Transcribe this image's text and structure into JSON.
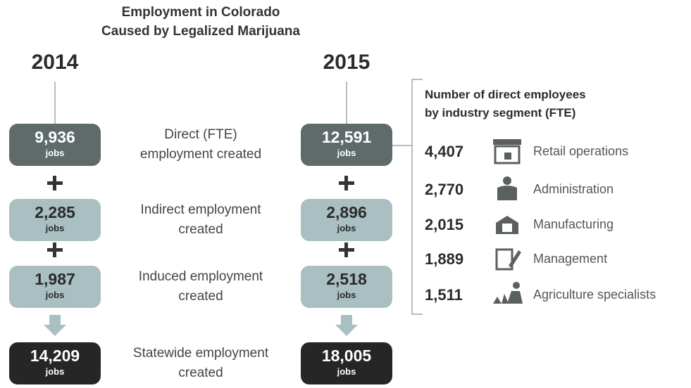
{
  "header": {
    "title_lines": [
      "Employment in Colorado",
      "Caused by Legalized Marijuana"
    ]
  },
  "years": [
    "2014",
    "2015"
  ],
  "unit": "jobs",
  "rows": [
    {
      "label_lines": [
        "Direct (FTE)",
        "employment created"
      ],
      "values": [
        "9,936",
        "12,591"
      ]
    },
    {
      "label_lines": [
        "Indirect employment",
        "created"
      ],
      "values": [
        "2,285",
        "2,896"
      ]
    },
    {
      "label_lines": [
        "Induced employment",
        "created"
      ],
      "values": [
        "1,987",
        "2,518"
      ]
    },
    {
      "label_lines": [
        "Statewide employment",
        "created"
      ],
      "values": [
        "14,209",
        "18,005"
      ]
    }
  ],
  "segments": {
    "title_lines": [
      "Number of direct employees",
      "by industry segment (FTE)"
    ],
    "items": [
      {
        "value": "4,407",
        "label": "Retail operations"
      },
      {
        "value": "2,770",
        "label": "Administration"
      },
      {
        "value": "2,015",
        "label": "Manufacturing"
      },
      {
        "value": "1,889",
        "label": "Management"
      },
      {
        "value": "1,511",
        "label": "Agriculture specialists"
      }
    ]
  }
}
